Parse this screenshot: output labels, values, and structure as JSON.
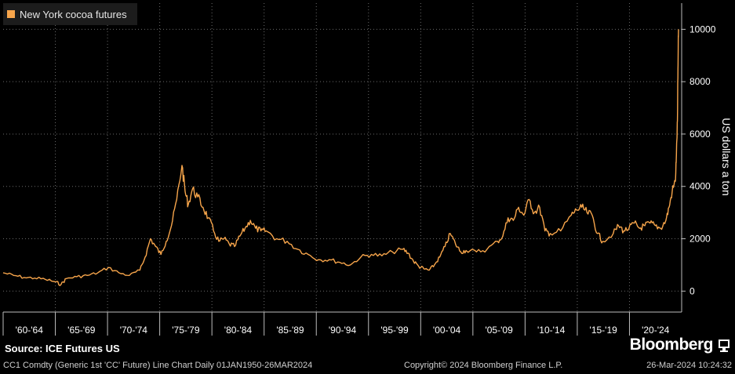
{
  "legend": {
    "label": "New York cocoa futures",
    "color": "#f7a54b"
  },
  "source": "Source: ICE Futures US",
  "brand": "Bloomberg",
  "footer": {
    "left": "CC1 Comdty (Generic 1st 'CC' Future) Line Chart  Daily 01JAN1950-26MAR2024",
    "middle": "Copyright© 2024 Bloomberg Finance L.P.",
    "right": "26-Mar-2024 10:24:32"
  },
  "chart_data": {
    "type": "line",
    "title": "",
    "xlabel": "",
    "ylabel": "US dollars a ton",
    "ylim": [
      -800,
      11000
    ],
    "xlim": [
      1960,
      2024.5
    ],
    "grid": true,
    "legend_position": "top-left",
    "y_ticks": [
      0,
      2000,
      4000,
      6000,
      8000,
      10000
    ],
    "x_ticks": [
      "'60-'64",
      "'65-'69",
      "'70-'74",
      "'75-'79",
      "'80-'84",
      "'85-'89",
      "'90-'94",
      "'95-'99",
      "'00-'04",
      "'05-'09",
      "'10-'14",
      "'15-'19",
      "'20-'24"
    ],
    "series": [
      {
        "name": "New York cocoa futures",
        "color": "#f7a54b",
        "x": [
          1960,
          1961,
          1962,
          1963,
          1964,
          1965,
          1965.5,
          1966,
          1967,
          1968,
          1969,
          1970,
          1971,
          1972,
          1973,
          1973.5,
          1974,
          1974.5,
          1975,
          1975.5,
          1976,
          1976.5,
          1977,
          1977.3,
          1977.6,
          1978,
          1978.5,
          1979,
          1979.5,
          1980,
          1980.5,
          1981,
          1981.5,
          1982,
          1982.5,
          1983,
          1983.5,
          1984,
          1984.5,
          1985,
          1986,
          1987,
          1988,
          1989,
          1990,
          1991,
          1992,
          1993,
          1994,
          1995,
          1996,
          1997,
          1998,
          1998.5,
          1999,
          1999.5,
          2000,
          2000.5,
          2001,
          2001.5,
          2002,
          2002.5,
          2003,
          2003.5,
          2004,
          2005,
          2006,
          2007,
          2007.5,
          2008,
          2008.5,
          2009,
          2009.5,
          2010,
          2010.5,
          2011,
          2011.5,
          2012,
          2013,
          2014,
          2014.5,
          2015,
          2015.5,
          2016,
          2016.5,
          2017,
          2018,
          2018.5,
          2019,
          2019.5,
          2020,
          2020.5,
          2021,
          2021.5,
          2022,
          2022.5,
          2023,
          2023.3,
          2023.6,
          2023.9,
          2024.0,
          2024.1,
          2024.15,
          2024.2
        ],
        "y": [
          700,
          600,
          520,
          500,
          450,
          350,
          250,
          480,
          550,
          600,
          700,
          900,
          700,
          600,
          800,
          1300,
          2000,
          1700,
          1400,
          1900,
          2500,
          3500,
          4800,
          3800,
          3300,
          3900,
          3600,
          3200,
          2800,
          2300,
          1900,
          2000,
          1800,
          1700,
          2100,
          2400,
          2700,
          2400,
          2300,
          2300,
          2000,
          1900,
          1600,
          1400,
          1200,
          1200,
          1100,
          1000,
          1300,
          1400,
          1350,
          1500,
          1600,
          1450,
          1150,
          950,
          850,
          800,
          1000,
          1300,
          1700,
          2200,
          1800,
          1500,
          1550,
          1500,
          1600,
          1900,
          2100,
          2800,
          2700,
          3200,
          2900,
          3500,
          3000,
          3200,
          2300,
          2200,
          2300,
          2900,
          3100,
          3200,
          3000,
          2900,
          2200,
          1900,
          2200,
          2500,
          2300,
          2400,
          2600,
          2400,
          2500,
          2600,
          2500,
          2400,
          2700,
          3200,
          3800,
          4200,
          5200,
          6500,
          8500,
          10000
        ]
      }
    ]
  }
}
